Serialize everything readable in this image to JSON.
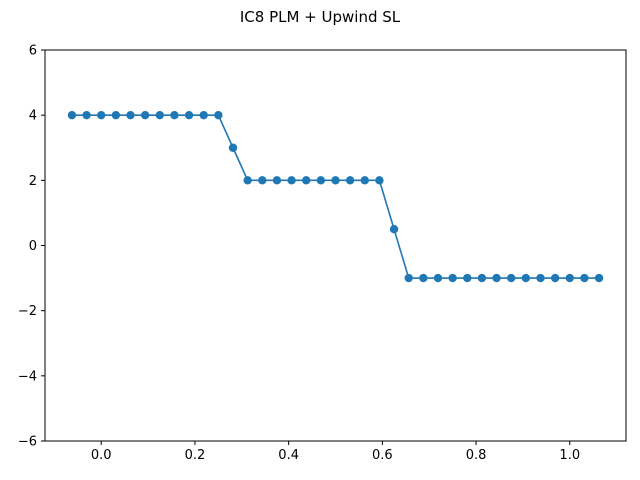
{
  "chart_data": {
    "type": "line",
    "title": "IC8 PLM + Upwind SL",
    "xlabel": "",
    "ylabel": "",
    "xlim": [
      -0.12,
      1.12
    ],
    "ylim": [
      -6,
      6
    ],
    "xticks": [
      0.0,
      0.2,
      0.4,
      0.6,
      0.8,
      1.0
    ],
    "xtick_labels": [
      "0.0",
      "0.2",
      "0.4",
      "0.6",
      "0.8",
      "1.0"
    ],
    "yticks": [
      -6,
      -4,
      -2,
      0,
      2,
      4,
      6
    ],
    "ytick_labels": [
      "−6",
      "−4",
      "−2",
      "0",
      "2",
      "4",
      "6"
    ],
    "grid": false,
    "legend": null,
    "series": [
      {
        "color": "#1f77b4",
        "marker": "circle",
        "x": [
          -0.0625,
          -0.03125,
          0.0,
          0.03125,
          0.0625,
          0.09375,
          0.125,
          0.15625,
          0.1875,
          0.21875,
          0.25,
          0.28125,
          0.3125,
          0.34375,
          0.375,
          0.40625,
          0.4375,
          0.46875,
          0.5,
          0.53125,
          0.5625,
          0.59375,
          0.625,
          0.65625,
          0.6875,
          0.71875,
          0.75,
          0.78125,
          0.8125,
          0.84375,
          0.875,
          0.90625,
          0.9375,
          0.96875,
          1.0,
          1.03125,
          1.0625
        ],
        "y": [
          4,
          4,
          4,
          4,
          4,
          4,
          4,
          4,
          4,
          4,
          4,
          3,
          2,
          2,
          2,
          2,
          2,
          2,
          2,
          2,
          2,
          2,
          0.5,
          -1,
          -1,
          -1,
          -1,
          -1,
          -1,
          -1,
          -1,
          -1,
          -1,
          -1,
          -1,
          -1,
          -1
        ]
      }
    ]
  }
}
